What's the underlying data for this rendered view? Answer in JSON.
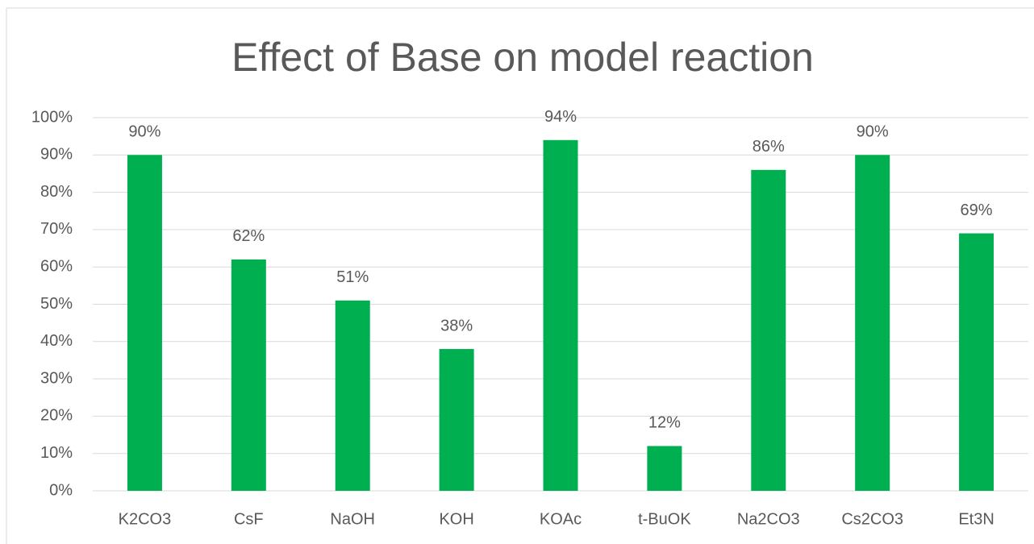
{
  "chart_data": {
    "type": "bar",
    "title": "Effect of Base on model reaction",
    "categories": [
      "K2CO3",
      "CsF",
      "NaOH",
      "KOH",
      "KOAc",
      "t-BuOK",
      "Na2CO3",
      "Cs2CO3",
      "Et3N"
    ],
    "values": [
      90,
      62,
      51,
      38,
      94,
      12,
      86,
      90,
      69
    ],
    "value_labels": [
      "90%",
      "62%",
      "51%",
      "38%",
      "94%",
      "12%",
      "86%",
      "90%",
      "69%"
    ],
    "color": "#00b050",
    "ylim": [
      0,
      100
    ],
    "yticks": [
      {
        "value": 0,
        "label": "0%"
      },
      {
        "value": 10,
        "label": "10%"
      },
      {
        "value": 20,
        "label": "20%"
      },
      {
        "value": 30,
        "label": "30%"
      },
      {
        "value": 40,
        "label": "40%"
      },
      {
        "value": 50,
        "label": "50%"
      },
      {
        "value": 60,
        "label": "60%"
      },
      {
        "value": 70,
        "label": "70%"
      },
      {
        "value": 80,
        "label": "80%"
      },
      {
        "value": 90,
        "label": "90%"
      },
      {
        "value": 100,
        "label": "100%"
      }
    ],
    "grid": true
  }
}
